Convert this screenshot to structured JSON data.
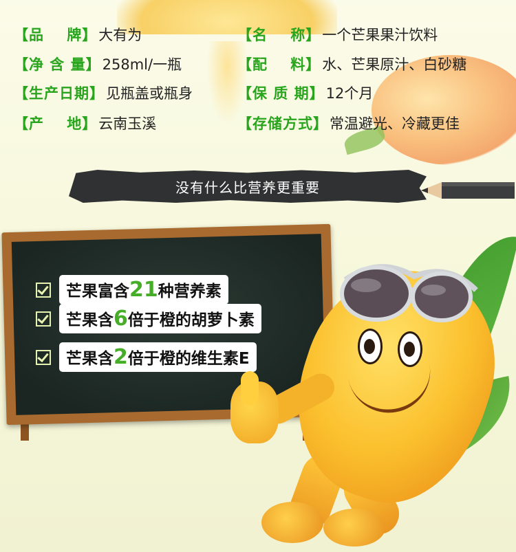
{
  "info": {
    "rows": [
      {
        "label": "【品    牌】",
        "value": "大有为"
      },
      {
        "label": "【名    称】",
        "value": "一个芒果果汁饮料"
      },
      {
        "label": "【净 含 量】",
        "value": "258ml/一瓶"
      },
      {
        "label": "【配    料】",
        "value": "水、芒果原汁、白砂糖"
      },
      {
        "label": "【生产日期】",
        "value": "见瓶盖或瓶身"
      },
      {
        "label": "【保 质 期】",
        "value": "12个月"
      },
      {
        "label": "【产    地】",
        "value": "云南玉溪"
      },
      {
        "label": "【存储方式】",
        "value": "常温避光、冷藏更佳"
      }
    ]
  },
  "ribbon": {
    "text": "没有什么比营养更重要"
  },
  "board": {
    "lines": [
      {
        "pre": "芒果富含",
        "num": "21",
        "post": "种营养素"
      },
      {
        "pre": "芒果含",
        "num": "6",
        "post": "倍于橙的胡萝卜素"
      },
      {
        "pre": "芒果含",
        "num": "2",
        "post": "倍于橙的维生素E"
      }
    ]
  },
  "colors": {
    "label_green": "#29a51d",
    "accent_green": "#46ad28",
    "board_wood": "#a86a2e"
  }
}
